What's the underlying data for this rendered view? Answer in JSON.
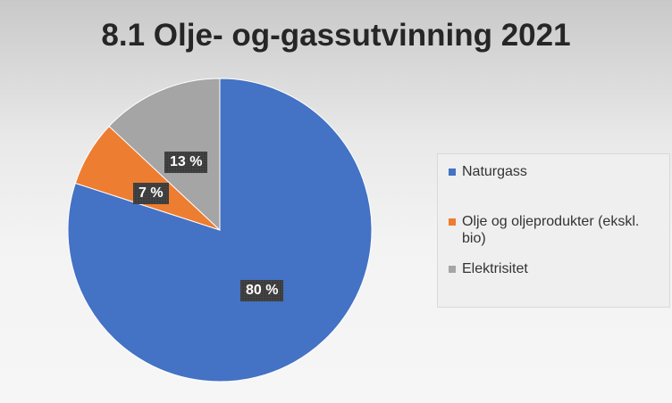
{
  "chart_data": {
    "type": "pie",
    "title": "8.1 Olje- og-gassutvinning 2021",
    "categories": [
      "Naturgass",
      "Olje og oljeprodukter (ekskl. bio)",
      "Elektrisitet"
    ],
    "values": [
      80,
      7,
      13
    ],
    "labels": [
      "80 %",
      "7 %",
      "13 %"
    ],
    "colors": [
      "#4472c4",
      "#ed7d31",
      "#a5a5a5"
    ],
    "legend_position": "right"
  }
}
